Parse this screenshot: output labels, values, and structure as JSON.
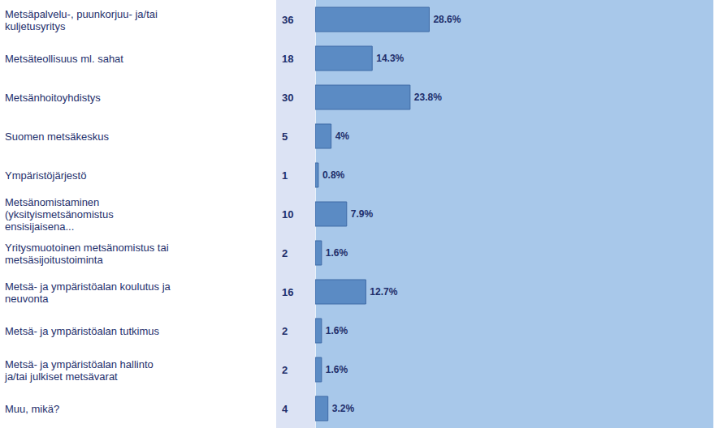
{
  "chart_data": {
    "type": "bar",
    "orientation": "horizontal",
    "categories": [
      "Metsäpalvelu-, puunkorjuu- ja/tai kuljetusyritys",
      "Metsäteollisuus ml. sahat",
      "Metsänhoitoyhdistys",
      "Suomen metsäkeskus",
      "Ympäristöjärjestö",
      "Metsänomistaminen (yksityismetsänomistus ensisijaisena...",
      "Yritysmuotoinen metsänomistus tai metsäsijoitustoiminta",
      "Metsä- ja ympäristöalan koulutus ja neuvonta",
      "Metsä- ja ympäristöalan tutkimus",
      "Metsä- ja ympäristöalan hallinto ja/tai julkiset metsävarat",
      "Muu, mikä?"
    ],
    "values": [
      28.6,
      14.3,
      23.8,
      4,
      0.8,
      7.9,
      1.6,
      12.7,
      1.6,
      1.6,
      3.2
    ],
    "value_labels": [
      "28.6%",
      "14.3%",
      "23.8%",
      "4%",
      "0.8%",
      "7.9%",
      "1.6%",
      "12.7%",
      "1.6%",
      "1.6%",
      "3.2%"
    ],
    "counts": [
      36,
      18,
      30,
      5,
      1,
      10,
      2,
      16,
      2,
      2,
      4
    ],
    "data_labels": true,
    "xlim": [
      0,
      100
    ],
    "xticks": [
      0,
      10,
      20,
      30,
      40,
      50,
      60,
      70,
      80,
      90,
      100
    ],
    "grid": true,
    "tick_labels": false,
    "color": "#5b8bc4"
  }
}
